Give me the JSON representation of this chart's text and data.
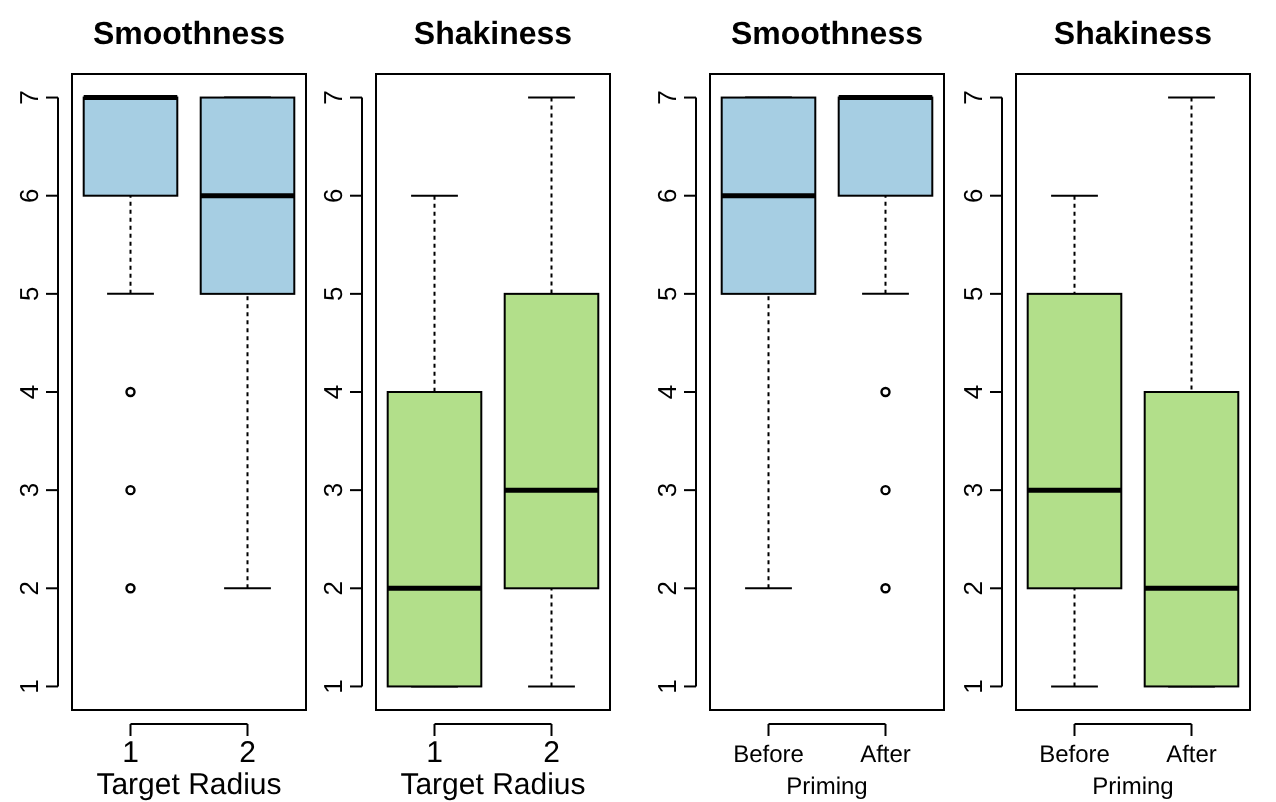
{
  "chart_data": [
    {
      "type": "box",
      "title": "Smoothness",
      "xlabel": "Target Radius",
      "categories": [
        "1",
        "2"
      ],
      "colors": [
        "#a6cee3",
        "#a6cee3"
      ],
      "ylim": [
        0.76,
        7.24
      ],
      "yticks": [
        1,
        2,
        3,
        4,
        5,
        6,
        7
      ],
      "boxes": [
        {
          "low": 5,
          "q1": 6,
          "median": 7,
          "q3": 7,
          "high": 7,
          "outliers": [
            4,
            3,
            2
          ]
        },
        {
          "low": 2,
          "q1": 5,
          "median": 6,
          "q3": 7,
          "high": 7
        }
      ]
    },
    {
      "type": "box",
      "title": "Shakiness",
      "xlabel": "Target Radius",
      "categories": [
        "1",
        "2"
      ],
      "colors": [
        "#b2df8a",
        "#b2df8a"
      ],
      "ylim": [
        0.76,
        7.24
      ],
      "yticks": [
        1,
        2,
        3,
        4,
        5,
        6,
        7
      ],
      "boxes": [
        {
          "low": 1,
          "q1": 1,
          "median": 2,
          "q3": 4,
          "high": 6
        },
        {
          "low": 1,
          "q1": 2,
          "median": 3,
          "q3": 5,
          "high": 7
        }
      ]
    },
    {
      "type": "box",
      "title": "Smoothness",
      "xlabel": "Priming",
      "categories": [
        "Before",
        "After"
      ],
      "colors": [
        "#a6cee3",
        "#a6cee3"
      ],
      "ylim": [
        0.76,
        7.24
      ],
      "yticks": [
        1,
        2,
        3,
        4,
        5,
        6,
        7
      ],
      "boxes": [
        {
          "low": 2,
          "q1": 5,
          "median": 6,
          "q3": 7,
          "high": 7
        },
        {
          "low": 5,
          "q1": 6,
          "median": 7,
          "q3": 7,
          "high": 7,
          "outliers": [
            4,
            3,
            2
          ]
        }
      ]
    },
    {
      "type": "box",
      "title": "Shakiness",
      "xlabel": "Priming",
      "categories": [
        "Before",
        "After"
      ],
      "colors": [
        "#b2df8a",
        "#b2df8a"
      ],
      "ylim": [
        0.76,
        7.24
      ],
      "yticks": [
        1,
        2,
        3,
        4,
        5,
        6,
        7
      ],
      "boxes": [
        {
          "low": 1,
          "q1": 2,
          "median": 3,
          "q3": 5,
          "high": 6
        },
        {
          "low": 1,
          "q1": 1,
          "median": 2,
          "q3": 4,
          "high": 7
        }
      ]
    }
  ]
}
